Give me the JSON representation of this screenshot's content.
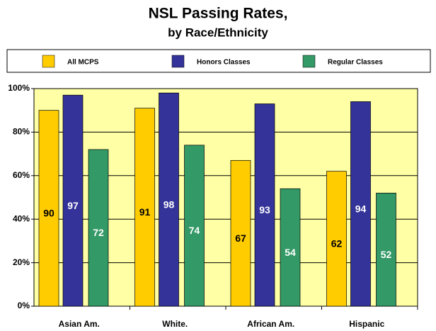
{
  "chart_data": {
    "type": "bar",
    "title": "NSL Passing Rates,",
    "subtitle": "by Race/Ethnicity",
    "categories": [
      "Asian Am.",
      "White.",
      "African Am.",
      "Hispanic"
    ],
    "series": [
      {
        "name": "All MCPS",
        "color": "#ffcc00",
        "values": [
          90,
          91,
          67,
          62
        ]
      },
      {
        "name": "Honors Classes",
        "color": "#333399",
        "values": [
          97,
          98,
          93,
          94
        ]
      },
      {
        "name": "Regular Classes",
        "color": "#339966",
        "values": [
          72,
          74,
          54,
          52
        ]
      }
    ],
    "ylim": [
      0,
      100
    ],
    "yticks": [
      {
        "value": 0,
        "label": "0%"
      },
      {
        "value": 20,
        "label": "20%"
      },
      {
        "value": 40,
        "label": "40%"
      },
      {
        "value": 60,
        "label": "60%"
      },
      {
        "value": 80,
        "label": "80%"
      },
      {
        "value": 100,
        "label": "100%"
      }
    ],
    "grid": true,
    "legend": "top"
  }
}
